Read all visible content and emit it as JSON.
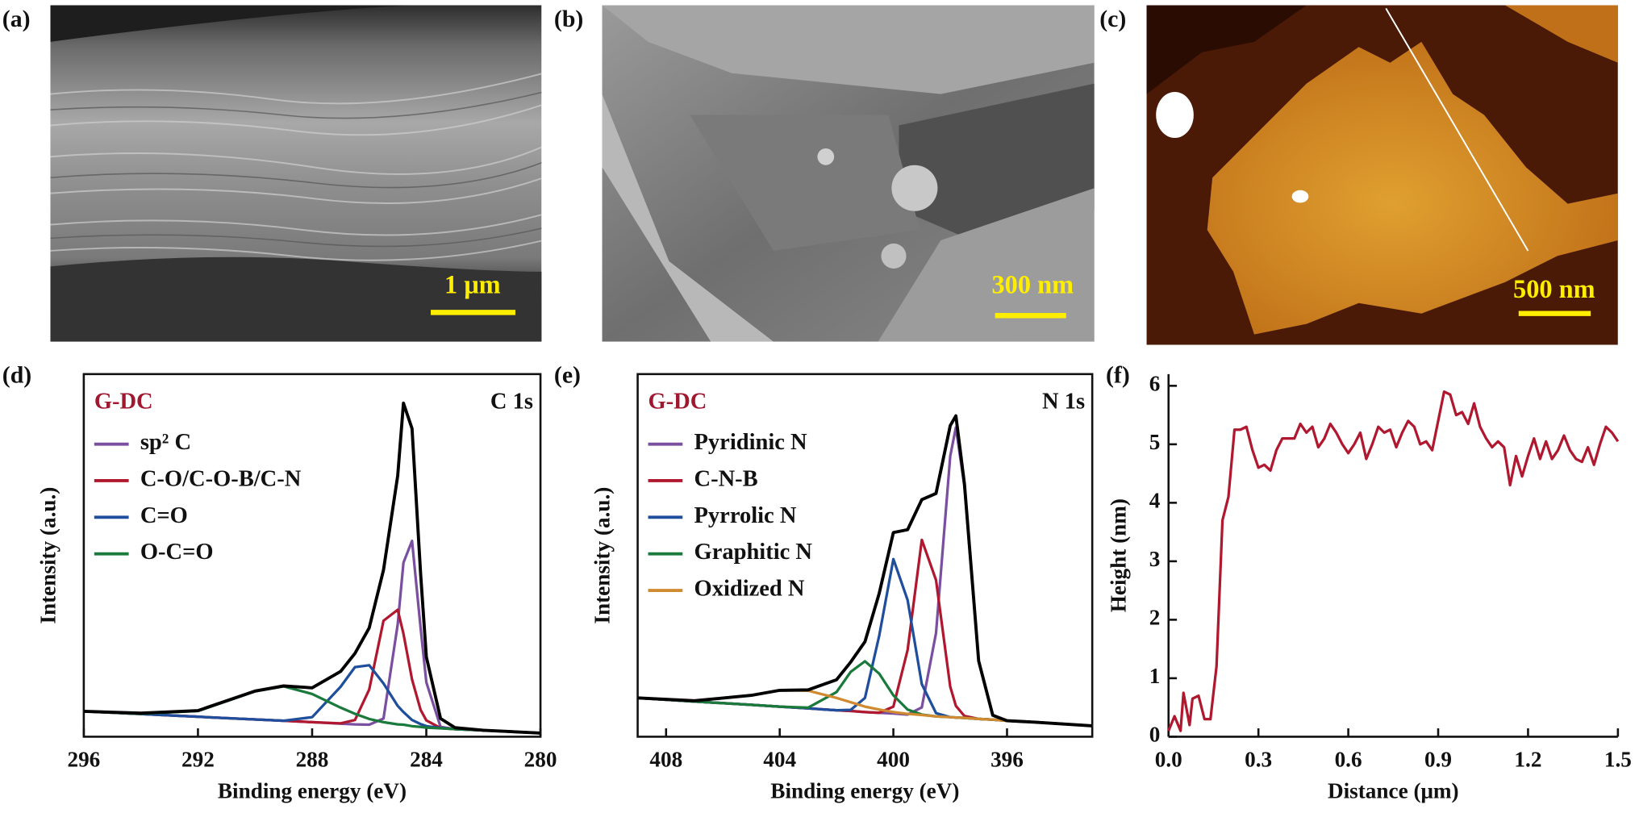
{
  "panels": [
    {
      "label": "(a)",
      "scale_bar": "1 μm"
    },
    {
      "label": "(b)",
      "scale_bar": "300 nm"
    },
    {
      "label": "(c)",
      "scale_bar": "500 nm"
    }
  ],
  "chart_data": [
    {
      "type": "line",
      "label": "(d)",
      "annotations": [
        "G-DC",
        "C 1s"
      ],
      "annotation_color": "#a01830",
      "xlabel": "Binding energy (eV)",
      "ylabel": "Intensity (a.u.)",
      "x": [
        296,
        294,
        292,
        290,
        289,
        288,
        287,
        286.5,
        286,
        285.5,
        285,
        284.8,
        284.5,
        284.2,
        284,
        283.5,
        283,
        282,
        280
      ],
      "xlim": [
        296,
        280
      ],
      "xticks": [
        296,
        292,
        288,
        284,
        280
      ],
      "ylim": [
        0,
        100
      ],
      "envelope": {
        "color": "#000000",
        "values": [
          7,
          6.5,
          7.2,
          12.6,
          14,
          13.5,
          18,
          23,
          30,
          46,
          72,
          92,
          85,
          45,
          22,
          5,
          2.5,
          1.8,
          1
        ]
      },
      "series": [
        {
          "name": "sp² C",
          "color": "#7b4fa0",
          "values": [
            7,
            6.25,
            5.5,
            4.75,
            4.4,
            4,
            3.6,
            3.4,
            3.3,
            5,
            31,
            48,
            54,
            30,
            15,
            2.7,
            2.1,
            1.75,
            1
          ]
        },
        {
          "name": "C-O/C-O-B/C-N",
          "color": "#b0182f",
          "values": [
            7,
            6.25,
            5.5,
            4.75,
            4.4,
            4,
            3.7,
            4.6,
            13,
            32,
            35,
            28.4,
            15.8,
            7.4,
            4.5,
            2.4,
            2.1,
            1.75,
            1
          ]
        },
        {
          "name": "C=O",
          "color": "#1f4e9c",
          "values": [
            7,
            6.25,
            5.5,
            4.75,
            4.4,
            5.4,
            13.8,
            19.2,
            19.7,
            14.7,
            8.5,
            6.8,
            4.6,
            3.5,
            2.9,
            2.4,
            2.1,
            1.75,
            1
          ]
        },
        {
          "name": "O-C=O",
          "color": "#1a7a3c",
          "values": [
            7,
            6.3,
            7.1,
            12.5,
            13.9,
            11.8,
            8,
            6.3,
            4.9,
            4,
            3.4,
            3.3,
            2.9,
            2.7,
            2.5,
            2.3,
            2.1,
            1.75,
            1
          ]
        }
      ]
    },
    {
      "type": "line",
      "label": "(e)",
      "annotations": [
        "G-DC",
        "N 1s"
      ],
      "annotation_color": "#a01830",
      "xlabel": "Binding energy (eV)",
      "ylabel": "Intensity (a.u.)",
      "x": [
        409,
        407,
        405,
        404,
        403,
        402,
        401.5,
        401,
        400.5,
        400,
        399.5,
        399,
        398.5,
        398,
        397.8,
        397.5,
        397,
        396.5,
        396,
        395,
        393
      ],
      "xlim": [
        409,
        393
      ],
      "xticks": [
        408,
        404,
        400,
        396
      ],
      "ylim": [
        0,
        100
      ],
      "envelope": {
        "color": "#000000",
        "values": [
          10.7,
          9.9,
          11.4,
          12.8,
          12.9,
          15.7,
          20.6,
          26.2,
          39.5,
          56.3,
          57.1,
          65.4,
          67.1,
          85.8,
          88.5,
          69.7,
          20.9,
          5.9,
          4.4,
          4,
          3
        ]
      },
      "series": [
        {
          "name": "Pyridinic N",
          "color": "#7b4fa0",
          "values": [
            10.7,
            9.7,
            8.8,
            8.3,
            7.8,
            7.3,
            7.1,
            6.8,
            6.6,
            6.4,
            6.1,
            8.1,
            28.6,
            77.4,
            85.3,
            69,
            21,
            5.9,
            4.4,
            4,
            3
          ]
        },
        {
          "name": "C-N-B",
          "color": "#b0182f",
          "values": [
            10.7,
            9.7,
            8.8,
            8.3,
            7.8,
            7.3,
            7.1,
            6.8,
            6.6,
            8.3,
            23.9,
            54.3,
            43.2,
            13.8,
            8.5,
            5.7,
            4.9,
            4.7,
            4.4,
            4,
            3
          ]
        },
        {
          "name": "Pyrrolic N",
          "color": "#1f4e9c",
          "values": [
            10.7,
            9.7,
            8.8,
            8.3,
            7.8,
            7.3,
            7.4,
            10.7,
            27.8,
            49,
            37.7,
            14.5,
            6.5,
            5.4,
            5.3,
            5.2,
            4.9,
            4.7,
            4.4,
            4,
            3
          ]
        },
        {
          "name": "Graphitic N",
          "color": "#1a7a3c",
          "values": [
            10.7,
            9.7,
            8.8,
            8.3,
            8,
            12.3,
            17.9,
            20.8,
            17.4,
            11.4,
            7.5,
            6.1,
            5.6,
            5.4,
            5.3,
            5.2,
            4.9,
            4.7,
            4.4,
            4,
            3
          ]
        },
        {
          "name": "Oxidized N",
          "color": "#d08a30",
          "values": [
            10.7,
            9.9,
            11.4,
            12.8,
            12.7,
            10.7,
            9.5,
            8.3,
            7.5,
            6.8,
            6.3,
            6,
            5.6,
            5.4,
            5.3,
            5.2,
            4.9,
            4.7,
            4.4,
            4,
            3
          ]
        }
      ]
    },
    {
      "type": "line",
      "label": "(f)",
      "xlabel": "Distance (μm)",
      "ylabel": "Height (nm)",
      "x": [
        0,
        0.02,
        0.04,
        0.05,
        0.07,
        0.08,
        0.1,
        0.12,
        0.14,
        0.16,
        0.18,
        0.2,
        0.22,
        0.24,
        0.26,
        0.28,
        0.3,
        0.32,
        0.34,
        0.36,
        0.38,
        0.4,
        0.42,
        0.44,
        0.46,
        0.48,
        0.5,
        0.52,
        0.54,
        0.56,
        0.58,
        0.6,
        0.62,
        0.64,
        0.66,
        0.68,
        0.7,
        0.72,
        0.74,
        0.76,
        0.78,
        0.8,
        0.82,
        0.84,
        0.86,
        0.88,
        0.9,
        0.92,
        0.94,
        0.96,
        0.98,
        1,
        1.02,
        1.04,
        1.06,
        1.08,
        1.1,
        1.12,
        1.14,
        1.16,
        1.18,
        1.2,
        1.22,
        1.24,
        1.26,
        1.28,
        1.3,
        1.32,
        1.34,
        1.36,
        1.38,
        1.4,
        1.42,
        1.44,
        1.46,
        1.48,
        1.5
      ],
      "xlim": [
        0,
        1.5
      ],
      "xticks": [
        {
          "value": 0,
          "label": "0.0"
        },
        0.3,
        0.6,
        0.9,
        1.2,
        1.5
      ],
      "ylim": [
        0,
        6.2
      ],
      "yticks": [
        0,
        1,
        2,
        3,
        4,
        5,
        6
      ],
      "series": [
        {
          "color": "#b0182f",
          "values": [
            0.1,
            0.35,
            0.1,
            0.75,
            0.2,
            0.65,
            0.7,
            0.3,
            0.3,
            1.2,
            3.7,
            4.1,
            5.25,
            5.25,
            5.3,
            4.9,
            4.6,
            4.65,
            4.55,
            4.9,
            5.1,
            5.1,
            5.1,
            5.35,
            5.2,
            5.3,
            4.95,
            5.1,
            5.35,
            5.2,
            5,
            4.85,
            5,
            5.2,
            4.75,
            5,
            5.3,
            5.2,
            5.25,
            4.95,
            5.2,
            5.4,
            5.3,
            5,
            5.05,
            4.9,
            5.4,
            5.9,
            5.85,
            5.5,
            5.55,
            5.35,
            5.7,
            5.3,
            5.1,
            4.95,
            5.05,
            4.95,
            4.3,
            4.8,
            4.45,
            4.8,
            5.1,
            4.75,
            5.05,
            4.75,
            4.9,
            5.15,
            4.9,
            4.75,
            4.7,
            4.95,
            4.65,
            5,
            5.3,
            5.2,
            5.05
          ]
        }
      ]
    }
  ]
}
